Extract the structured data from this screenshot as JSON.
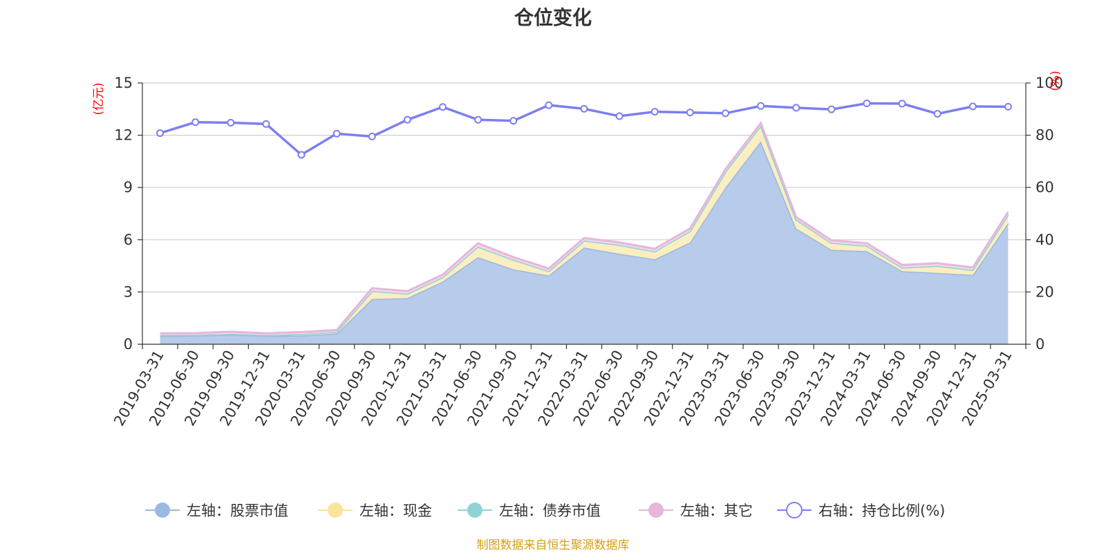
{
  "chart_data": {
    "type": "area",
    "title": "仓位变化",
    "x": [
      "2019-03-31",
      "2019-06-30",
      "2019-09-30",
      "2019-12-31",
      "2020-03-31",
      "2020-06-30",
      "2020-09-30",
      "2020-12-31",
      "2021-03-31",
      "2021-06-30",
      "2021-09-30",
      "2021-12-31",
      "2022-03-31",
      "2022-06-30",
      "2022-09-30",
      "2022-12-31",
      "2023-03-31",
      "2023-06-30",
      "2023-09-30",
      "2023-12-31",
      "2024-03-31",
      "2024-06-30",
      "2024-09-30",
      "2024-12-31",
      "2025-03-31"
    ],
    "left_axis": {
      "unit": "(亿元)",
      "ylim": [
        0,
        15
      ],
      "ticks": [
        "0",
        "3",
        "6",
        "9",
        "12",
        "15"
      ]
    },
    "right_axis": {
      "unit": "(%)",
      "ylim": [
        0,
        100
      ],
      "ticks": [
        "0",
        "20",
        "40",
        "60",
        "80",
        "100"
      ]
    },
    "series": [
      {
        "name": "左轴：股票市值",
        "axis": "left",
        "stack": true,
        "color": "#9bb8e0",
        "fill": "#b7cbea",
        "values": [
          0.48,
          0.5,
          0.55,
          0.49,
          0.5,
          0.62,
          2.6,
          2.65,
          3.6,
          5.0,
          4.3,
          3.95,
          5.55,
          5.2,
          4.88,
          5.85,
          9.0,
          11.65,
          6.65,
          5.42,
          5.35,
          4.2,
          4.1,
          3.98,
          6.95
        ]
      },
      {
        "name": "左轴：现金",
        "axis": "left",
        "stack": true,
        "color": "#f9e49a",
        "fill": "#fbeec0",
        "values": [
          0.05,
          0.04,
          0.05,
          0.04,
          0.08,
          0.1,
          0.45,
          0.25,
          0.25,
          0.6,
          0.55,
          0.25,
          0.4,
          0.5,
          0.45,
          0.65,
          0.9,
          0.9,
          0.5,
          0.4,
          0.3,
          0.2,
          0.4,
          0.28,
          0.5
        ]
      },
      {
        "name": "左轴：债券市值",
        "axis": "left",
        "stack": true,
        "color": "#8fd3d6",
        "fill": "#bfe6e8",
        "values": [
          0,
          0,
          0,
          0,
          0,
          0,
          0,
          0,
          0,
          0,
          0,
          0,
          0,
          0,
          0,
          0,
          0,
          0,
          0,
          0,
          0,
          0,
          0,
          0,
          0
        ]
      },
      {
        "name": "左轴：其它",
        "axis": "left",
        "stack": true,
        "color": "#e6b6dc",
        "fill": "#f1d7ec",
        "values": [
          0.1,
          0.1,
          0.12,
          0.1,
          0.12,
          0.1,
          0.17,
          0.15,
          0.15,
          0.2,
          0.15,
          0.15,
          0.15,
          0.15,
          0.15,
          0.15,
          0.15,
          0.15,
          0.15,
          0.15,
          0.15,
          0.15,
          0.15,
          0.15,
          0.15
        ]
      },
      {
        "name": "右轴：持仓比例(%)",
        "axis": "right",
        "color": "#7b7ff0",
        "values": [
          80.8,
          85.0,
          84.8,
          84.3,
          72.5,
          80.6,
          79.5,
          85.9,
          90.8,
          85.9,
          85.5,
          91.5,
          90.1,
          87.3,
          89.0,
          88.7,
          88.4,
          91.2,
          90.5,
          89.9,
          92.2,
          92.1,
          88.2,
          91.0,
          90.9
        ]
      }
    ],
    "grid": true,
    "legend_position": "bottom"
  },
  "source": "制图数据来自恒生聚源数据库"
}
